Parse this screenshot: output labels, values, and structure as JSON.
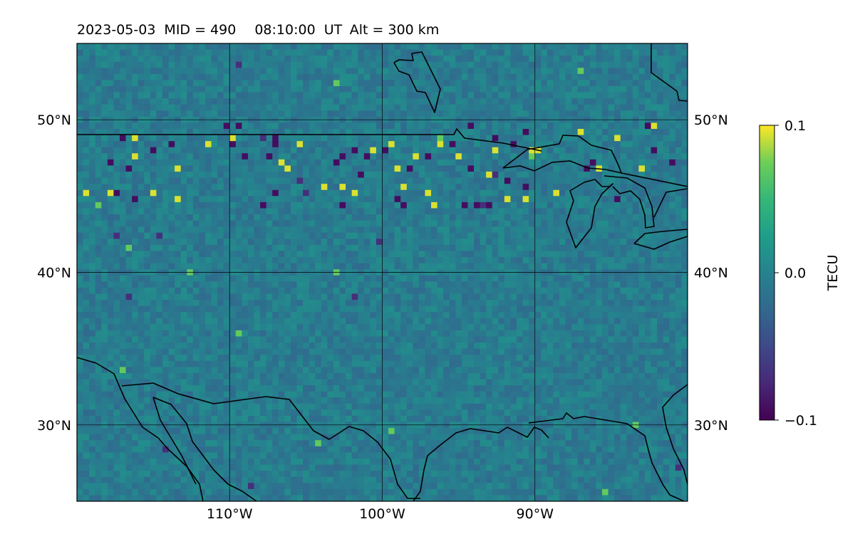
{
  "title": {
    "date": "2023-05-03",
    "mid": "MID = 490",
    "time": "08:10:00  UT",
    "alt": "Alt = 300 km"
  },
  "map": {
    "projection": "PlateCarree",
    "lon_range": [
      -120,
      -80
    ],
    "lat_range": [
      25,
      55
    ],
    "grid": true,
    "coastlines": true,
    "lat_ticks": [
      {
        "value": 50,
        "label": "50°N"
      },
      {
        "value": 40,
        "label": "40°N"
      },
      {
        "value": 30,
        "label": "30°N"
      }
    ],
    "lon_ticks": [
      {
        "value": -110,
        "label": "110°W"
      },
      {
        "value": -100,
        "label": "100°W"
      },
      {
        "value": -90,
        "label": "90°W"
      }
    ],
    "field": "TEC differential (residual noise field with positive/negative clusters)"
  },
  "colorbar": {
    "label": "TECU",
    "colormap": "viridis",
    "range": [
      -0.1,
      0.1
    ],
    "ticks": [
      {
        "value": 0.1,
        "label": "0.1"
      },
      {
        "value": 0.0,
        "label": "0.0"
      },
      {
        "value": -0.1,
        "label": "−0.1"
      }
    ]
  },
  "colors": {
    "viridis_low": "#440154",
    "viridis_mid": "#21918c",
    "viridis_high": "#fde725",
    "coastline": "#000000",
    "grid": "#000000"
  }
}
